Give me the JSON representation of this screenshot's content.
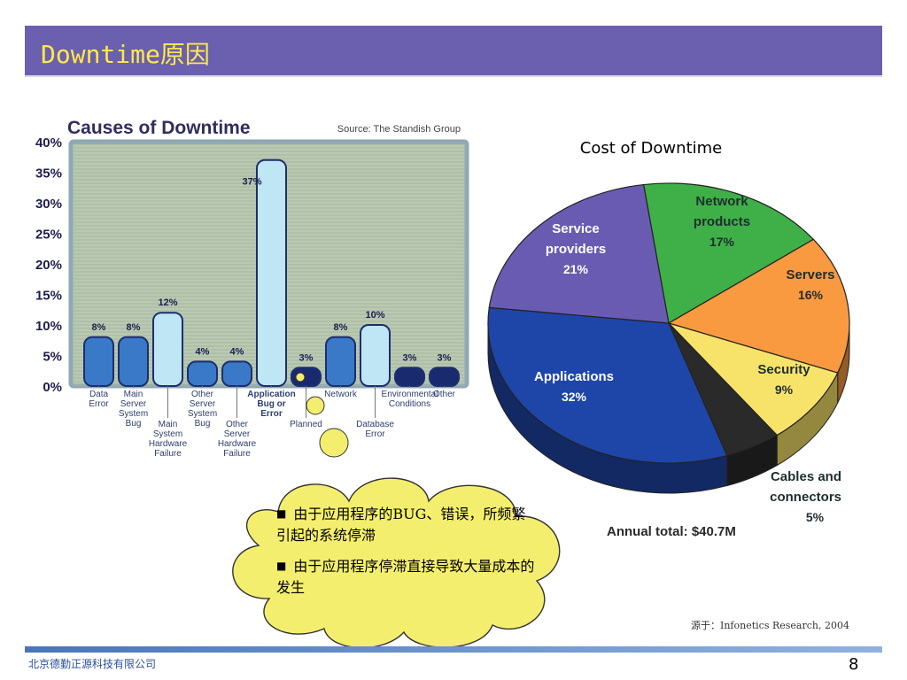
{
  "slide": {
    "title": "Downtime原因",
    "source_note": "源于：Infonetics Research, 2004",
    "company": "北京德勤正源科技有限公司",
    "page_number": "8",
    "colors": {
      "header_bg": "#6B5FAF",
      "title": "#FFE94A",
      "callout": "#F4EE6E"
    }
  },
  "callout": {
    "items": [
      "由于应用程序的BUG、错误，所频繁引起的系统停滞",
      "由于应用程序停滞直接导致大量成本的发生"
    ]
  },
  "chart_data": [
    {
      "type": "bar",
      "title": "Causes of Downtime",
      "subtitle": "Source: The Standish Group",
      "ylim": [
        0,
        40
      ],
      "yticks": [
        "0%",
        "5%",
        "10%",
        "15%",
        "20%",
        "25%",
        "30%",
        "35%",
        "40%"
      ],
      "grid": true,
      "categories": [
        "Data Error",
        "Main Server System Bug",
        "Main System Hardware Failure",
        "Other Server System Bug",
        "Other Server Hardware Failure",
        "Application Bug or Error",
        "Planned",
        "Network",
        "Database Error",
        "Environmental Conditions",
        "Other"
      ],
      "values": [
        8,
        8,
        12,
        4,
        4,
        37,
        3,
        8,
        10,
        3,
        3
      ],
      "labels": [
        "8%",
        "8%",
        "12%",
        "4%",
        "4%",
        "37%",
        "3%",
        "8%",
        "10%",
        "3%",
        "3%"
      ]
    },
    {
      "type": "pie",
      "title": "Cost of Downtime",
      "total_label": "Annual total: $40.7M",
      "categories": [
        "Network products",
        "Servers",
        "Security",
        "Cables and connectors",
        "Applications",
        "Service providers"
      ],
      "values": [
        17,
        16,
        9,
        5,
        32,
        21
      ],
      "labels": [
        "17%",
        "16%",
        "9%",
        "5%",
        "32%",
        "21%"
      ],
      "colors": [
        "#3FAF48",
        "#F99A40",
        "#F7E36A",
        "#2A2A2A",
        "#1E45A8",
        "#6A5BB2"
      ]
    }
  ]
}
